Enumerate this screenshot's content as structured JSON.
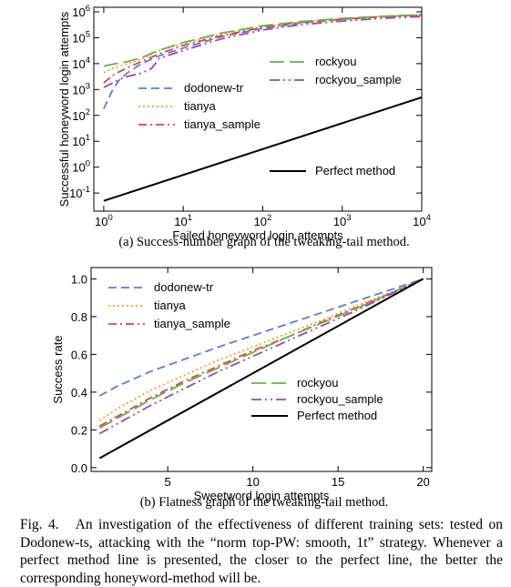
{
  "figure": {
    "label": "Fig. 4.",
    "caption": "An investigation of the effectiveness of different training sets: tested on Dodonew-ts, attacking with the “norm top-PW: smooth, 1t” strategy. Whenever a perfect method line is presented, the closer to the perfect line, the better the corresponding honeyword-method will be."
  },
  "colors": {
    "dodonew-tr": "#5a7fd6",
    "tianya": "#f0a030",
    "tianya_sample": "#d64a3a",
    "rockyou": "#6ab04c",
    "rockyou_sample": "#9b45b6",
    "Perfect method": "#000000"
  },
  "chart_data": [
    {
      "type": "line",
      "subcaption": "(a) Success-number graph of the tweaking-tail method.",
      "xlabel": "Failed honeyword login attempts",
      "ylabel": "Successful honeyword login attempts",
      "xscale": "log",
      "yscale": "log",
      "xlim": [
        0.75,
        10000
      ],
      "ylim": [
        0.02,
        1500000
      ],
      "xticks": [
        {
          "v": 1,
          "label": "10^0"
        },
        {
          "v": 10,
          "label": "10^1"
        },
        {
          "v": 100,
          "label": "10^2"
        },
        {
          "v": 1000,
          "label": "10^3"
        },
        {
          "v": 10000,
          "label": "10^4"
        }
      ],
      "yticks": [
        {
          "v": 0.1,
          "label": "10^-1"
        },
        {
          "v": 1,
          "label": "10^0"
        },
        {
          "v": 10,
          "label": "10^1"
        },
        {
          "v": 100,
          "label": "10^2"
        },
        {
          "v": 1000,
          "label": "10^3"
        },
        {
          "v": 10000,
          "label": "10^4"
        },
        {
          "v": 100000,
          "label": "10^5"
        },
        {
          "v": 1000000,
          "label": "10^6"
        }
      ],
      "legend": [
        {
          "position": "middle-left",
          "entries": [
            "dodonew-tr",
            "tianya",
            "tianya_sample"
          ]
        },
        {
          "position": "top-right",
          "entries": [
            "rockyou",
            "rockyou_sample"
          ]
        },
        {
          "position": "bottom-right",
          "entries": [
            "Perfect method"
          ]
        }
      ],
      "series": [
        {
          "name": "dodonew-tr",
          "style": "dashed",
          "x": [
            1,
            1.3,
            1.6,
            2,
            3,
            5,
            10,
            30,
            100,
            300,
            1000,
            3000,
            10000
          ],
          "y": [
            180,
            1000,
            2500,
            4500,
            10000,
            20000,
            40000,
            110000,
            230000,
            370000,
            510000,
            640000,
            760000
          ]
        },
        {
          "name": "tianya",
          "style": "dotted",
          "x": [
            1,
            1.3,
            1.6,
            2,
            3,
            5,
            10,
            30,
            100,
            300,
            1000,
            3000,
            10000
          ],
          "y": [
            4500,
            6500,
            8000,
            10000,
            15000,
            32000,
            60000,
            140000,
            270000,
            400000,
            540000,
            660000,
            760000
          ]
        },
        {
          "name": "tianya_sample",
          "style": "dashdot",
          "x": [
            1,
            1.3,
            1.6,
            2,
            3,
            5,
            10,
            30,
            100,
            300,
            1000,
            3000,
            10000
          ],
          "y": [
            1800,
            3500,
            5000,
            7000,
            12000,
            24000,
            50000,
            120000,
            250000,
            390000,
            520000,
            640000,
            740000
          ]
        },
        {
          "name": "rockyou",
          "style": "longdash",
          "x": [
            1,
            1.3,
            1.6,
            2,
            3,
            5,
            10,
            30,
            100,
            300,
            1000,
            3000,
            10000
          ],
          "y": [
            8000,
            9500,
            10500,
            12000,
            17000,
            33000,
            65000,
            150000,
            290000,
            420000,
            560000,
            670000,
            780000
          ]
        },
        {
          "name": "rockyou_sample",
          "style": "dashdotdot",
          "x": [
            1,
            1.3,
            1.6,
            2,
            3,
            4,
            5,
            10,
            30,
            100,
            300,
            1000,
            3000,
            10000
          ],
          "y": [
            1200,
            1800,
            2500,
            3200,
            4300,
            6500,
            16000,
            32000,
            90000,
            200000,
            320000,
            440000,
            560000,
            660000
          ]
        },
        {
          "name": "Perfect method",
          "style": "solid",
          "x": [
            1,
            10000
          ],
          "y": [
            0.05,
            500
          ]
        }
      ]
    },
    {
      "type": "line",
      "subcaption": "(b) Flatness graph of the tweaking-tail method.",
      "xlabel": "Sweetword login attempts",
      "ylabel": "Success rate",
      "xlim": [
        0.5,
        20.5
      ],
      "ylim": [
        -0.02,
        1.06
      ],
      "xticks": [
        {
          "v": 5,
          "label": "5"
        },
        {
          "v": 10,
          "label": "10"
        },
        {
          "v": 15,
          "label": "15"
        },
        {
          "v": 20,
          "label": "20"
        }
      ],
      "yticks": [
        {
          "v": 0,
          "label": "0.0"
        },
        {
          "v": 0.2,
          "label": "0.2"
        },
        {
          "v": 0.4,
          "label": "0.4"
        },
        {
          "v": 0.6,
          "label": "0.6"
        },
        {
          "v": 0.8,
          "label": "0.8"
        },
        {
          "v": 1,
          "label": "1.0"
        }
      ],
      "legend": [
        {
          "position": "top-left",
          "entries": [
            "dodonew-tr",
            "tianya",
            "tianya_sample"
          ]
        },
        {
          "position": "bottom-right",
          "entries": [
            "rockyou",
            "rockyou_sample",
            "Perfect method"
          ]
        }
      ],
      "series": [
        {
          "name": "dodonew-tr",
          "style": "dashed",
          "x": [
            1,
            2,
            3,
            4,
            6,
            8,
            10,
            12,
            14,
            16,
            18,
            20
          ],
          "y": [
            0.38,
            0.43,
            0.47,
            0.51,
            0.575,
            0.64,
            0.7,
            0.76,
            0.82,
            0.88,
            0.94,
            1.0
          ]
        },
        {
          "name": "tianya",
          "style": "dotted",
          "x": [
            1,
            2,
            3,
            4,
            6,
            8,
            10,
            12,
            14,
            16,
            18,
            20
          ],
          "y": [
            0.25,
            0.31,
            0.36,
            0.41,
            0.49,
            0.57,
            0.64,
            0.71,
            0.78,
            0.855,
            0.925,
            1.0
          ]
        },
        {
          "name": "tianya_sample",
          "style": "dashdot",
          "x": [
            1,
            2,
            3,
            4,
            6,
            8,
            10,
            12,
            14,
            16,
            18,
            20
          ],
          "y": [
            0.22,
            0.27,
            0.32,
            0.37,
            0.46,
            0.54,
            0.62,
            0.69,
            0.77,
            0.845,
            0.92,
            1.0
          ]
        },
        {
          "name": "rockyou",
          "style": "longdash",
          "x": [
            1,
            2,
            3,
            4,
            6,
            8,
            10,
            12,
            14,
            16,
            18,
            20
          ],
          "y": [
            0.21,
            0.26,
            0.31,
            0.36,
            0.45,
            0.53,
            0.61,
            0.69,
            0.765,
            0.84,
            0.92,
            1.0
          ]
        },
        {
          "name": "rockyou_sample",
          "style": "dashdotdot",
          "x": [
            1,
            2,
            3,
            4,
            6,
            8,
            10,
            12,
            14,
            16,
            18,
            20
          ],
          "y": [
            0.18,
            0.23,
            0.28,
            0.33,
            0.42,
            0.51,
            0.59,
            0.67,
            0.75,
            0.83,
            0.915,
            1.0
          ]
        },
        {
          "name": "Perfect method",
          "style": "solid",
          "x": [
            1,
            20
          ],
          "y": [
            0.05,
            1.0
          ]
        }
      ]
    }
  ]
}
